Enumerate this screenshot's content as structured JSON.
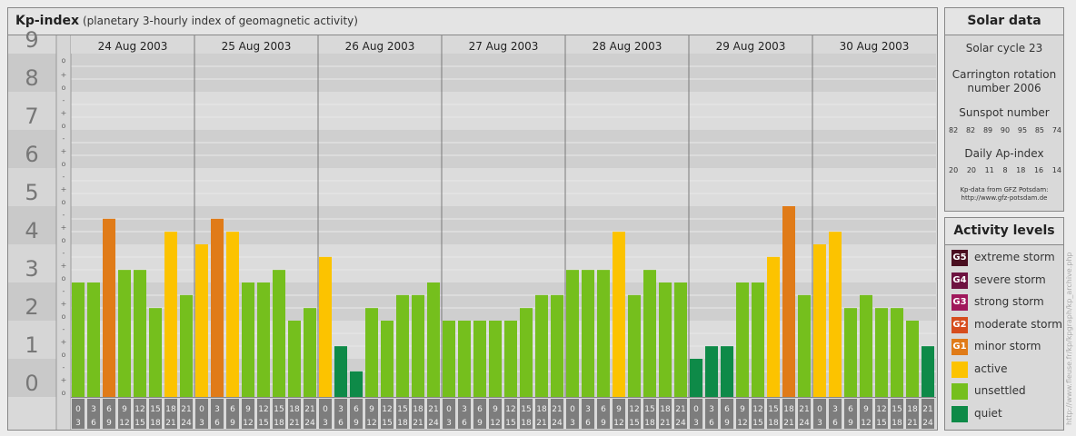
{
  "header": {
    "title": "Kp-index",
    "subtitle": "(planetary 3-hourly index of geomagnetic activity)"
  },
  "chart_data": {
    "type": "bar",
    "y_levels": [
      "0",
      "1",
      "2",
      "3",
      "4",
      "5",
      "6",
      "7",
      "8",
      "9"
    ],
    "y_minor_marks": [
      "o",
      "+",
      "-"
    ],
    "ylim": [
      0,
      9
    ],
    "days": [
      "24 Aug 2003",
      "25 Aug 2003",
      "26 Aug 2003",
      "27 Aug 2003",
      "28 Aug 2003",
      "29 Aug 2003",
      "30 Aug 2003"
    ],
    "interval_top": [
      "0",
      "3",
      "6",
      "9",
      "12",
      "15",
      "18",
      "21"
    ],
    "interval_bottom": [
      "3",
      "6",
      "9",
      "12",
      "15",
      "18",
      "21",
      "24"
    ],
    "values": [
      [
        3.0,
        3.0,
        4.67,
        3.33,
        3.33,
        2.33,
        4.33,
        2.67
      ],
      [
        4.0,
        4.67,
        4.33,
        3.0,
        3.0,
        3.33,
        2.0,
        2.33
      ],
      [
        3.67,
        1.33,
        0.67,
        2.33,
        2.0,
        2.67,
        2.67,
        3.0
      ],
      [
        2.0,
        2.0,
        2.0,
        2.0,
        2.0,
        2.33,
        2.67,
        2.67
      ],
      [
        3.33,
        3.33,
        3.33,
        4.33,
        2.67,
        3.33,
        3.0,
        3.0
      ],
      [
        1.0,
        1.33,
        1.33,
        3.0,
        3.0,
        3.67,
        5.0,
        2.67
      ],
      [
        4.0,
        4.33,
        2.33,
        2.67,
        2.33,
        2.33,
        2.0,
        1.33
      ]
    ],
    "activity_colors": {
      "quiet": "#0e8a48",
      "unsettled": "#75bf1d",
      "active": "#fcc300",
      "minor_storm": "#e07b18"
    }
  },
  "solar": {
    "title": "Solar data",
    "cycle": "Solar cycle 23",
    "carrington_line1": "Carrington rotation",
    "carrington_line2": "number 2006",
    "sunspot_title": "Sunspot number",
    "sunspot_numbers": [
      "82",
      "82",
      "89",
      "90",
      "95",
      "85",
      "74"
    ],
    "ap_title": "Daily Ap-index",
    "ap_values": [
      "20",
      "20",
      "11",
      "8",
      "18",
      "16",
      "14"
    ],
    "source_line1": "Kp-data from GFZ Potsdam:",
    "source_line2": "http://www.gfz-potsdam.de"
  },
  "levels": {
    "title": "Activity levels",
    "items": [
      {
        "code": "G5",
        "label": "extreme storm",
        "color": "#4a0f20"
      },
      {
        "code": "G4",
        "label": "severe storm",
        "color": "#6d1240"
      },
      {
        "code": "G3",
        "label": "strong storm",
        "color": "#a0185b"
      },
      {
        "code": "G2",
        "label": "moderate storm",
        "color": "#d64d1d"
      },
      {
        "code": "G1",
        "label": "minor storm",
        "color": "#e07b18"
      },
      {
        "code": "",
        "label": "active",
        "color": "#fcc300"
      },
      {
        "code": "",
        "label": "unsettled",
        "color": "#75bf1d"
      },
      {
        "code": "",
        "label": "quiet",
        "color": "#0e8a48"
      }
    ]
  },
  "credit": "http://www.fleuse.fr/kp/kpgraph/kp_archive.php"
}
